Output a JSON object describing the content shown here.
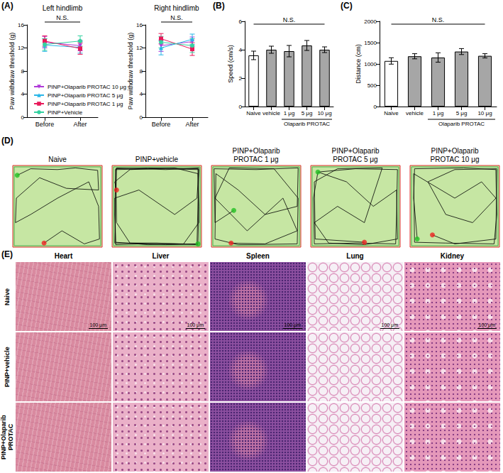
{
  "panel_labels": [
    "(A)",
    "(B)",
    "(C)",
    "(D)",
    "(E)"
  ],
  "chart_data": [
    {
      "type": "line",
      "title": "Left hindlimb",
      "ylabel": "Paw withdraw threshold (g)",
      "categories": [
        "Before",
        "After"
      ],
      "ylim": [
        0,
        16
      ],
      "yticks": [
        0,
        4,
        8,
        12,
        16
      ],
      "grid": false,
      "annotation": "N.S.",
      "legend": "lower left",
      "series": [
        {
          "name": "PINP+Olaparib PROTAC 10 μg",
          "color": "#b03ad8",
          "marker": "triangle-down",
          "values": [
            13.0,
            12.4
          ],
          "errors": [
            1.0,
            0.9
          ]
        },
        {
          "name": "PINP+Olaparib PROTAC 5 μg",
          "color": "#29b6e8",
          "marker": "triangle",
          "values": [
            12.5,
            12.1
          ],
          "errors": [
            1.1,
            1.0
          ]
        },
        {
          "name": "PINP+Olaparib PROTAC 1 μg",
          "color": "#e8195a",
          "marker": "square",
          "values": [
            13.2,
            11.9
          ],
          "errors": [
            0.9,
            1.0
          ]
        },
        {
          "name": "PINP+Vehicle",
          "color": "#33d1a0",
          "marker": "circle",
          "values": [
            12.6,
            13.2
          ],
          "errors": [
            1.0,
            0.9
          ]
        }
      ]
    },
    {
      "type": "line",
      "title": "Right hindlimb",
      "ylabel": "Paw withdraw threshold (g)",
      "categories": [
        "Before",
        "After"
      ],
      "ylim": [
        0,
        16
      ],
      "yticks": [
        0,
        4,
        8,
        12,
        16
      ],
      "grid": false,
      "annotation": "N.S.",
      "series": [
        {
          "name": "PINP+Olaparib PROTAC 10 μg",
          "color": "#b03ad8",
          "marker": "triangle-down",
          "values": [
            12.4,
            13.1
          ],
          "errors": [
            1.0,
            0.8
          ]
        },
        {
          "name": "PINP+Olaparib PROTAC 5 μg",
          "color": "#29b6e8",
          "marker": "triangle",
          "values": [
            12.0,
            13.5
          ],
          "errors": [
            1.2,
            0.9
          ]
        },
        {
          "name": "PINP+Olaparib PROTAC 1 μg",
          "color": "#e8195a",
          "marker": "square",
          "values": [
            13.6,
            11.8
          ],
          "errors": [
            0.9,
            1.1
          ]
        },
        {
          "name": "PINP+Vehicle",
          "color": "#33d1a0",
          "marker": "circle",
          "values": [
            13.0,
            12.4
          ],
          "errors": [
            1.0,
            1.2
          ]
        }
      ]
    },
    {
      "type": "bar",
      "ylabel": "Speed (cm/s)",
      "categories": [
        "Naive",
        "vehicle",
        "1 μg",
        "5 μg",
        "10 μg"
      ],
      "category_groups": [
        {
          "label": "Olaparib PROTAC",
          "categories": [
            "1 μg",
            "5 μg",
            "10 μg"
          ]
        }
      ],
      "values": [
        3.6,
        4.0,
        3.9,
        4.3,
        4.0
      ],
      "errors": [
        0.3,
        0.25,
        0.4,
        0.35,
        0.2
      ],
      "colors": [
        "#ffffff",
        "#a6a6a6",
        "#a6a6a6",
        "#a6a6a6",
        "#a6a6a6"
      ],
      "ylim": [
        0,
        6
      ],
      "yticks": [
        0,
        2,
        4,
        6
      ],
      "grid": false,
      "annotation": "N.S."
    },
    {
      "type": "bar",
      "ylabel": "Distance (cm)",
      "categories": [
        "Naive",
        "vehicle",
        "1 μg",
        "5 μg",
        "10 μg"
      ],
      "category_groups": [
        {
          "label": "Olaparib PROTAC",
          "categories": [
            "1 μg",
            "5 μg",
            "10 μg"
          ]
        }
      ],
      "values": [
        1070,
        1180,
        1150,
        1290,
        1190
      ],
      "errors": [
        75,
        60,
        110,
        70,
        50
      ],
      "colors": [
        "#ffffff",
        "#a6a6a6",
        "#a6a6a6",
        "#a6a6a6",
        "#a6a6a6"
      ],
      "ylim": [
        0,
        2000
      ],
      "yticks": [
        0,
        500,
        1000,
        1500,
        2000
      ],
      "grid": false,
      "annotation": "N.S."
    },
    {
      "type": "trajectory",
      "title": "Naive",
      "xlim": [
        0,
        100
      ],
      "ylim": [
        0,
        100
      ],
      "tick_labels": false,
      "grid": false,
      "color": "#000000",
      "path": [
        [
          5,
          88
        ],
        [
          20,
          96
        ],
        [
          50,
          95
        ],
        [
          70,
          97
        ],
        [
          95,
          94
        ],
        [
          96,
          70
        ],
        [
          60,
          72
        ],
        [
          30,
          85
        ],
        [
          4,
          60
        ],
        [
          3,
          30
        ],
        [
          20,
          40
        ],
        [
          50,
          60
        ],
        [
          85,
          80
        ],
        [
          96,
          50
        ],
        [
          97,
          10
        ],
        [
          80,
          4
        ],
        [
          55,
          20
        ],
        [
          35,
          5
        ]
      ],
      "start": [
        5,
        88
      ],
      "end": [
        35,
        5
      ]
    },
    {
      "type": "trajectory",
      "title": "PINP+vehicle",
      "xlim": [
        0,
        100
      ],
      "ylim": [
        0,
        100
      ],
      "tick_labels": false,
      "grid": false,
      "color": "#000000",
      "path": [
        [
          96,
          4
        ],
        [
          60,
          3
        ],
        [
          30,
          4
        ],
        [
          4,
          3
        ],
        [
          3,
          40
        ],
        [
          4,
          96
        ],
        [
          40,
          97
        ],
        [
          96,
          96
        ],
        [
          97,
          50
        ],
        [
          96,
          3
        ],
        [
          50,
          5
        ],
        [
          3,
          5
        ],
        [
          5,
          97
        ],
        [
          60,
          95
        ],
        [
          97,
          97
        ],
        [
          95,
          4
        ],
        [
          40,
          3
        ],
        [
          4,
          6
        ],
        [
          3,
          60
        ],
        [
          30,
          70
        ],
        [
          70,
          40
        ],
        [
          95,
          60
        ],
        [
          97,
          95
        ],
        [
          50,
          96
        ],
        [
          4,
          95
        ],
        [
          5,
          30
        ],
        [
          20,
          5
        ],
        [
          80,
          4
        ],
        [
          97,
          30
        ],
        [
          96,
          90
        ],
        [
          70,
          97
        ],
        [
          20,
          95
        ],
        [
          3,
          80
        ],
        [
          5,
          70
        ]
      ],
      "start": [
        96,
        4
      ],
      "end": [
        5,
        70
      ]
    },
    {
      "type": "trajectory",
      "title": "PINP+Olaparib PROTAC 1 μg",
      "xlim": [
        0,
        100
      ],
      "ylim": [
        0,
        100
      ],
      "tick_labels": false,
      "grid": false,
      "color": "#000000",
      "path": [
        [
          25,
          45
        ],
        [
          4,
          30
        ],
        [
          3,
          96
        ],
        [
          50,
          95
        ],
        [
          97,
          97
        ],
        [
          96,
          50
        ],
        [
          60,
          40
        ],
        [
          30,
          70
        ],
        [
          5,
          90
        ],
        [
          4,
          10
        ],
        [
          30,
          3
        ],
        [
          96,
          4
        ],
        [
          97,
          60
        ],
        [
          70,
          96
        ],
        [
          20,
          97
        ],
        [
          4,
          60
        ],
        [
          40,
          20
        ],
        [
          80,
          60
        ],
        [
          96,
          20
        ],
        [
          60,
          4
        ],
        [
          22,
          5
        ]
      ],
      "start": [
        25,
        45
      ],
      "end": [
        22,
        5
      ]
    },
    {
      "type": "trajectory",
      "title": "PINP+Olaparib PROTAC 5 μg",
      "xlim": [
        0,
        100
      ],
      "ylim": [
        0,
        100
      ],
      "tick_labels": false,
      "grid": false,
      "color": "#000000",
      "path": [
        [
          8,
          92
        ],
        [
          50,
          96
        ],
        [
          97,
          95
        ],
        [
          96,
          40
        ],
        [
          95,
          4
        ],
        [
          50,
          5
        ],
        [
          4,
          4
        ],
        [
          3,
          60
        ],
        [
          8,
          92
        ],
        [
          40,
          80
        ],
        [
          70,
          50
        ],
        [
          96,
          70
        ],
        [
          97,
          10
        ],
        [
          60,
          3
        ],
        [
          20,
          5
        ],
        [
          4,
          30
        ],
        [
          30,
          50
        ],
        [
          60,
          30
        ],
        [
          80,
          97
        ],
        [
          30,
          96
        ],
        [
          4,
          80
        ],
        [
          5,
          10
        ],
        [
          60,
          6
        ]
      ],
      "start": [
        8,
        92
      ],
      "end": [
        60,
        6
      ]
    },
    {
      "type": "trajectory",
      "title": "PINP+Olaparib PROTAC 10 μg",
      "xlim": [
        0,
        100
      ],
      "ylim": [
        0,
        100
      ],
      "tick_labels": false,
      "grid": false,
      "color": "#000000",
      "path": [
        [
          8,
          10
        ],
        [
          4,
          60
        ],
        [
          5,
          96
        ],
        [
          60,
          97
        ],
        [
          96,
          95
        ],
        [
          97,
          40
        ],
        [
          94,
          4
        ],
        [
          40,
          5
        ],
        [
          5,
          6
        ],
        [
          4,
          90
        ],
        [
          50,
          60
        ],
        [
          80,
          80
        ],
        [
          96,
          60
        ],
        [
          70,
          30
        ],
        [
          40,
          40
        ],
        [
          20,
          80
        ],
        [
          50,
          95
        ],
        [
          97,
          96
        ],
        [
          96,
          10
        ],
        [
          50,
          4
        ],
        [
          25,
          15
        ]
      ],
      "start": [
        8,
        10
      ],
      "end": [
        25,
        15
      ]
    }
  ],
  "histology": {
    "columns": [
      "Heart",
      "Liver",
      "Spleen",
      "Lung",
      "Kidney"
    ],
    "rows": [
      "Naive",
      "PINP+vehicle",
      "PINP+Olaparib PROTAC"
    ],
    "scale_bar": "100 μm"
  }
}
